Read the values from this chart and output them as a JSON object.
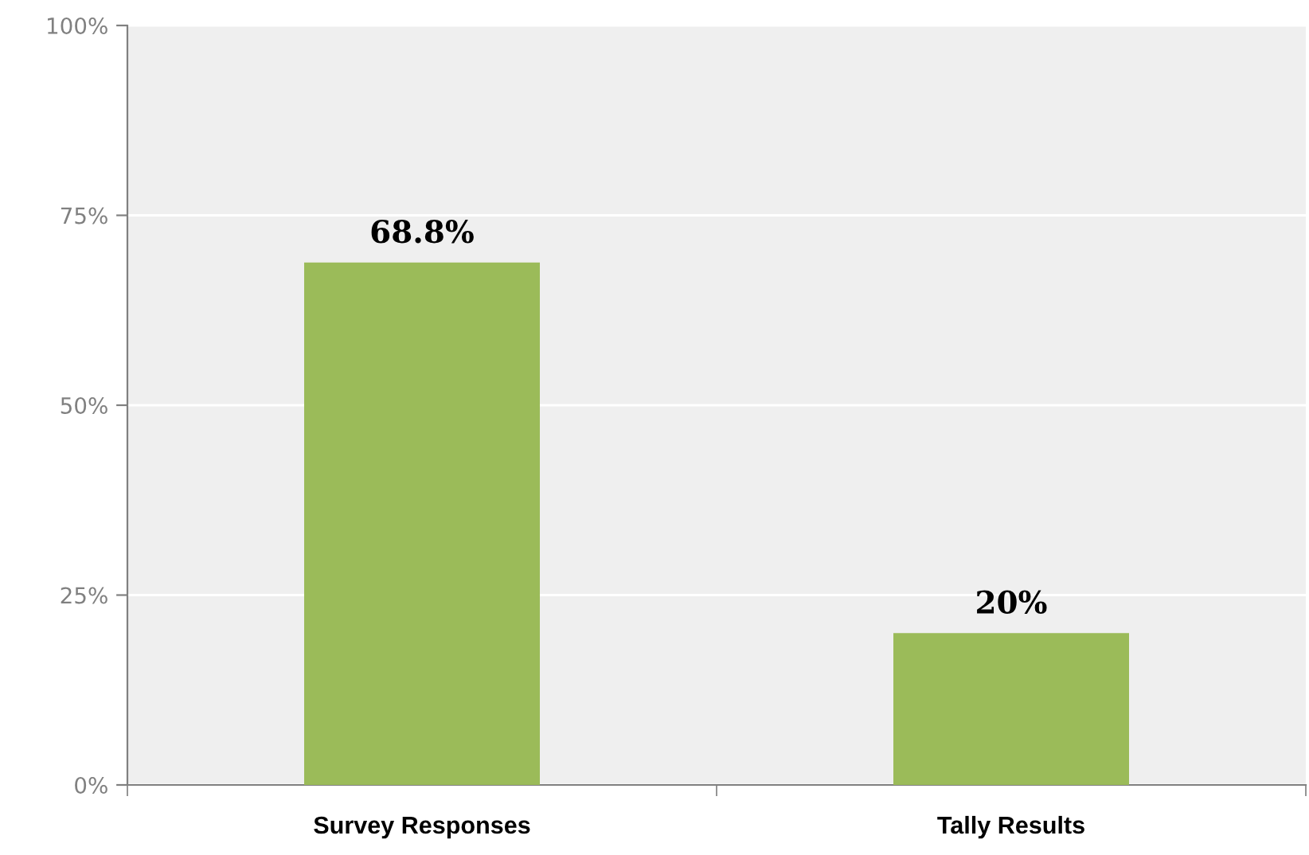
{
  "chart_data": {
    "type": "bar",
    "categories": [
      "Survey Responses",
      "Tally Results"
    ],
    "values": [
      68.8,
      20
    ],
    "color": "#9bbb59",
    "value_labels": [
      "68.8%",
      "20%"
    ],
    "ylim": [
      0,
      100
    ],
    "yticks": [
      {
        "value": 0,
        "label": "0%"
      },
      {
        "value": 25,
        "label": "25%"
      },
      {
        "value": 50,
        "label": "50%"
      },
      {
        "value": 75,
        "label": "75%"
      },
      {
        "value": 100,
        "label": "100%"
      }
    ],
    "grid": "y",
    "legend": false
  }
}
